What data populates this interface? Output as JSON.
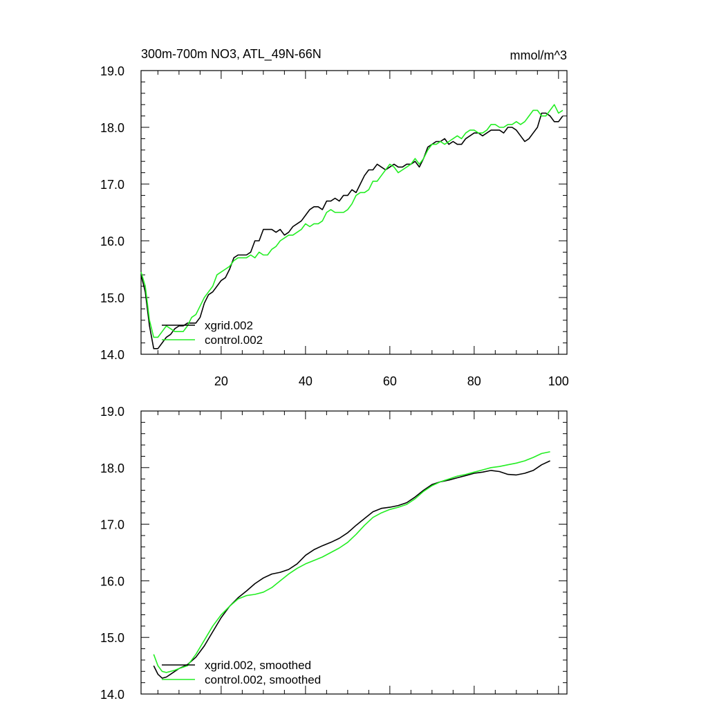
{
  "colors": {
    "xgrid": "#000000",
    "control": "#22ee22",
    "axis": "#000000",
    "background": "#ffffff"
  },
  "chart_data": [
    {
      "type": "line",
      "title": "300m-700m NO3, ATL_49N-66N",
      "units": "mmol/m^3",
      "xlim": [
        1,
        102
      ],
      "ylim": [
        14.0,
        19.0
      ],
      "xticks": [
        20,
        40,
        60,
        80,
        100
      ],
      "yticks": [
        "14.0",
        "15.0",
        "16.0",
        "17.0",
        "18.0",
        "19.0"
      ],
      "x_tick_labels_visible": true,
      "legend_position": "lower-left",
      "series": [
        {
          "name": "xgrid.002",
          "color": "#000000",
          "x": [
            1,
            2,
            3,
            4,
            5,
            6,
            7,
            8,
            9,
            10,
            11,
            12,
            13,
            14,
            15,
            16,
            17,
            18,
            19,
            20,
            21,
            22,
            23,
            24,
            25,
            26,
            27,
            28,
            29,
            30,
            31,
            32,
            33,
            34,
            35,
            36,
            37,
            38,
            39,
            40,
            41,
            42,
            43,
            44,
            45,
            46,
            47,
            48,
            49,
            50,
            51,
            52,
            53,
            54,
            55,
            56,
            57,
            58,
            59,
            60,
            61,
            62,
            63,
            64,
            65,
            66,
            67,
            68,
            69,
            70,
            71,
            72,
            73,
            74,
            75,
            76,
            77,
            78,
            79,
            80,
            81,
            82,
            83,
            84,
            85,
            86,
            87,
            88,
            89,
            90,
            91,
            92,
            93,
            94,
            95,
            96,
            97,
            98,
            99,
            100,
            101
          ],
          "y": [
            15.4,
            15.1,
            14.5,
            14.1,
            14.1,
            14.2,
            14.3,
            14.35,
            14.45,
            14.5,
            14.5,
            14.55,
            14.55,
            14.55,
            14.65,
            14.9,
            15.05,
            15.1,
            15.2,
            15.3,
            15.35,
            15.5,
            15.7,
            15.75,
            15.75,
            15.75,
            15.8,
            16.0,
            16.0,
            16.2,
            16.2,
            16.2,
            16.15,
            16.2,
            16.1,
            16.15,
            16.25,
            16.3,
            16.35,
            16.45,
            16.55,
            16.6,
            16.6,
            16.55,
            16.7,
            16.7,
            16.75,
            16.7,
            16.8,
            16.8,
            16.9,
            16.85,
            17.0,
            17.15,
            17.25,
            17.25,
            17.35,
            17.3,
            17.25,
            17.3,
            17.35,
            17.3,
            17.3,
            17.35,
            17.35,
            17.4,
            17.3,
            17.45,
            17.65,
            17.7,
            17.75,
            17.75,
            17.8,
            17.7,
            17.75,
            17.7,
            17.7,
            17.8,
            17.85,
            17.9,
            17.9,
            17.85,
            17.9,
            17.95,
            17.95,
            17.95,
            17.9,
            18.0,
            18.0,
            17.95,
            17.85,
            17.75,
            17.8,
            17.9,
            18.0,
            18.25,
            18.25,
            18.2,
            18.1,
            18.1,
            18.2
          ]
        },
        {
          "name": "control.002",
          "color": "#22ee22",
          "x": [
            1,
            2,
            3,
            4,
            5,
            6,
            7,
            8,
            9,
            10,
            11,
            12,
            13,
            14,
            15,
            16,
            17,
            18,
            19,
            20,
            21,
            22,
            23,
            24,
            25,
            26,
            27,
            28,
            29,
            30,
            31,
            32,
            33,
            34,
            35,
            36,
            37,
            38,
            39,
            40,
            41,
            42,
            43,
            44,
            45,
            46,
            47,
            48,
            49,
            50,
            51,
            52,
            53,
            54,
            55,
            56,
            57,
            58,
            59,
            60,
            61,
            62,
            63,
            64,
            65,
            66,
            67,
            68,
            69,
            70,
            71,
            72,
            73,
            74,
            75,
            76,
            77,
            78,
            79,
            80,
            81,
            82,
            83,
            84,
            85,
            86,
            87,
            88,
            89,
            90,
            91,
            92,
            93,
            94,
            95,
            96,
            97,
            98,
            99,
            100,
            101
          ],
          "y": [
            15.45,
            15.2,
            14.6,
            14.3,
            14.3,
            14.4,
            14.5,
            14.45,
            14.4,
            14.4,
            14.4,
            14.5,
            14.65,
            14.7,
            14.85,
            15.0,
            15.1,
            15.2,
            15.4,
            15.45,
            15.5,
            15.55,
            15.65,
            15.7,
            15.7,
            15.7,
            15.75,
            15.7,
            15.8,
            15.75,
            15.75,
            15.85,
            15.9,
            16.0,
            16.05,
            16.1,
            16.1,
            16.15,
            16.2,
            16.3,
            16.25,
            16.3,
            16.3,
            16.35,
            16.5,
            16.55,
            16.5,
            16.5,
            16.5,
            16.55,
            16.65,
            16.8,
            16.85,
            16.85,
            16.9,
            17.05,
            17.05,
            17.15,
            17.25,
            17.35,
            17.3,
            17.2,
            17.25,
            17.3,
            17.35,
            17.45,
            17.35,
            17.45,
            17.6,
            17.7,
            17.7,
            17.75,
            17.7,
            17.75,
            17.8,
            17.85,
            17.8,
            17.9,
            17.95,
            17.95,
            17.9,
            17.9,
            17.95,
            18.05,
            18.05,
            18.0,
            18.0,
            18.05,
            18.05,
            18.1,
            18.05,
            18.1,
            18.2,
            18.3,
            18.3,
            18.2,
            18.2,
            18.3,
            18.4,
            18.25,
            18.3
          ]
        }
      ]
    },
    {
      "type": "line",
      "title": "",
      "units": "",
      "xlim": [
        1,
        102
      ],
      "ylim": [
        14.0,
        19.0
      ],
      "xticks": [
        20,
        40,
        60,
        80,
        100
      ],
      "yticks": [
        "14.0",
        "15.0",
        "16.0",
        "17.0",
        "18.0",
        "19.0"
      ],
      "x_tick_labels_visible": false,
      "legend_position": "lower-left",
      "series": [
        {
          "name": "xgrid.002, smoothed",
          "color": "#000000",
          "x": [
            4,
            5,
            6,
            7,
            8,
            9,
            10,
            12,
            14,
            16,
            18,
            20,
            22,
            24,
            26,
            28,
            30,
            32,
            34,
            36,
            38,
            40,
            42,
            44,
            46,
            48,
            50,
            52,
            54,
            56,
            58,
            60,
            62,
            64,
            66,
            68,
            70,
            72,
            74,
            76,
            78,
            80,
            82,
            84,
            86,
            88,
            90,
            92,
            94,
            96,
            98
          ],
          "y": [
            14.5,
            14.35,
            14.28,
            14.3,
            14.35,
            14.4,
            14.45,
            14.52,
            14.65,
            14.85,
            15.1,
            15.35,
            15.55,
            15.7,
            15.82,
            15.95,
            16.05,
            16.12,
            16.15,
            16.2,
            16.3,
            16.45,
            16.55,
            16.62,
            16.68,
            16.75,
            16.85,
            16.98,
            17.1,
            17.22,
            17.28,
            17.3,
            17.33,
            17.38,
            17.48,
            17.6,
            17.7,
            17.75,
            17.78,
            17.82,
            17.86,
            17.9,
            17.92,
            17.95,
            17.93,
            17.88,
            17.87,
            17.9,
            17.95,
            18.05,
            18.12
          ]
        },
        {
          "name": "control.002, smoothed",
          "color": "#22ee22",
          "x": [
            4,
            5,
            6,
            7,
            8,
            9,
            10,
            12,
            14,
            16,
            18,
            20,
            22,
            24,
            26,
            28,
            30,
            32,
            34,
            36,
            38,
            40,
            42,
            44,
            46,
            48,
            50,
            52,
            54,
            56,
            58,
            60,
            62,
            64,
            66,
            68,
            70,
            72,
            74,
            76,
            78,
            80,
            82,
            84,
            86,
            88,
            90,
            92,
            94,
            96,
            98
          ],
          "y": [
            14.7,
            14.5,
            14.4,
            14.38,
            14.4,
            14.42,
            14.45,
            14.5,
            14.7,
            14.95,
            15.2,
            15.4,
            15.55,
            15.68,
            15.74,
            15.76,
            15.8,
            15.88,
            16.0,
            16.12,
            16.22,
            16.3,
            16.36,
            16.42,
            16.5,
            16.58,
            16.68,
            16.82,
            16.98,
            17.12,
            17.2,
            17.26,
            17.3,
            17.35,
            17.45,
            17.58,
            17.68,
            17.75,
            17.8,
            17.85,
            17.88,
            17.92,
            17.96,
            18.0,
            18.02,
            18.05,
            18.08,
            18.12,
            18.18,
            18.25,
            18.28
          ]
        }
      ]
    }
  ]
}
